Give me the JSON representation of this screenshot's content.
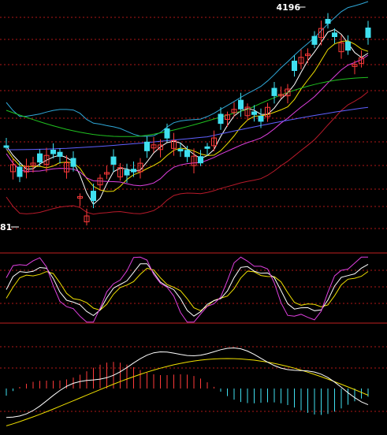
{
  "colors": {
    "background": "#000000",
    "grid": "#b01818",
    "separator": "#c02020",
    "candle_up": "#ff3a3a",
    "candle_down": "#3fe0f0",
    "ma5": "#ffffff",
    "ma10": "#f0e000",
    "ma20": "#e040e0",
    "ma60": "#20c020",
    "ma120": "#6060ff",
    "boll_upper": "#2fa8d8",
    "boll_lower": "#b81a2a",
    "kdj_k": "#ffffff",
    "kdj_d": "#f0e000",
    "kdj_j": "#e040e0",
    "macd_dif": "#ffffff",
    "macd_dea": "#f0e000",
    "macd_pos": "#ff3a3a",
    "macd_neg": "#3fe0f0"
  },
  "labels": {
    "high_marker": "4196",
    "low_marker": "81"
  },
  "chart_data": [
    {
      "type": "candlestick",
      "panel": "price",
      "ylim": [
        3450,
        4230
      ],
      "grid": true,
      "bars": 55,
      "hi_low_marks": [
        {
          "text": "4196",
          "bar": 45
        },
        {
          "text": "81",
          "bar": 2
        }
      ]
    },
    {
      "type": "line",
      "panel": "kdj",
      "ylim": [
        -20,
        120
      ],
      "series": [
        "K",
        "D",
        "J"
      ]
    },
    {
      "type": "bar",
      "panel": "macd",
      "ylim": [
        -1,
        1
      ],
      "series": [
        "DIF",
        "DEA",
        "MACD"
      ]
    }
  ]
}
